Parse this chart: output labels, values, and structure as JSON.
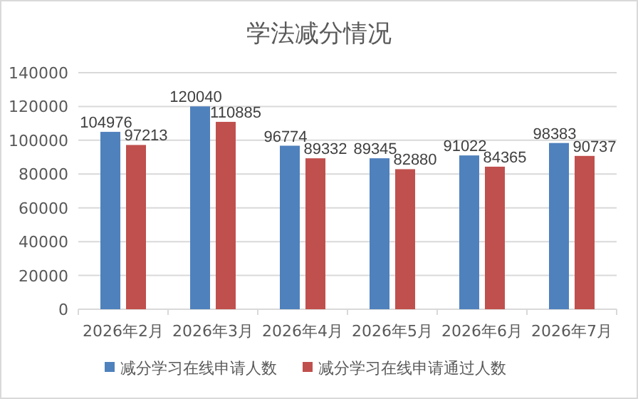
{
  "chart_data": {
    "type": "bar",
    "title": "学法减分情况",
    "categories": [
      "2026年2月",
      "2026年3月",
      "2026年4月",
      "2026年5月",
      "2026年6月",
      "2026年7月"
    ],
    "series": [
      {
        "name": "减分学习在线申请人数",
        "color": "#4f81bd",
        "values": [
          104976,
          120040,
          96774,
          89345,
          91022,
          98383
        ]
      },
      {
        "name": "减分学习在线申请通过人数",
        "color": "#c0504d",
        "values": [
          97213,
          110885,
          89332,
          82880,
          84365,
          90737
        ]
      }
    ],
    "ylim": [
      0,
      140000
    ],
    "yticks": [
      0,
      20000,
      40000,
      60000,
      80000,
      100000,
      120000,
      140000
    ],
    "grid": "y",
    "legend": "bottom",
    "data_labels": true
  }
}
